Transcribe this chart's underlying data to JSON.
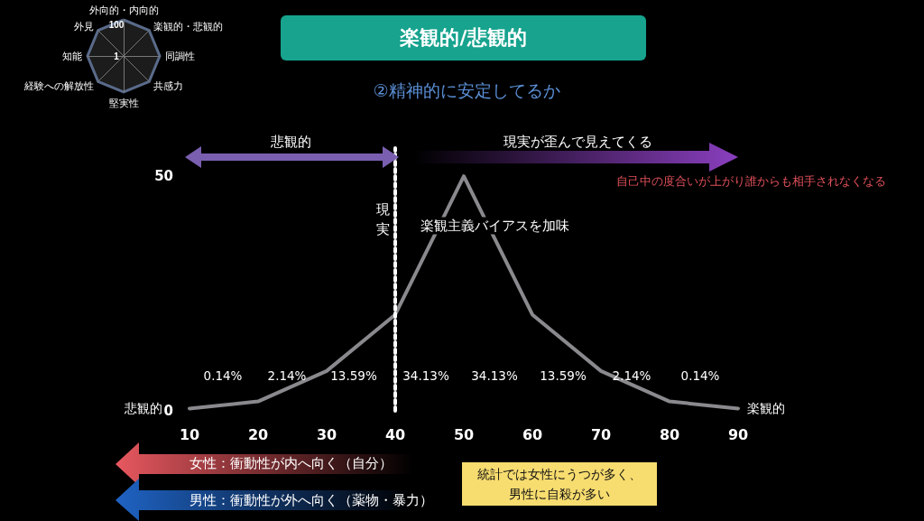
{
  "chart_data": [
    {
      "type": "line",
      "title": "楽観的/悲観的",
      "subtitle": "②精神的に安定してるか",
      "x": [
        10,
        20,
        30,
        40,
        50,
        60,
        70,
        80,
        90
      ],
      "series": [
        {
          "color": "#8a8a8e",
          "values": [
            0.5,
            2,
            8.5,
            20.5,
            50,
            20.5,
            8.5,
            2,
            0.5
          ]
        }
      ],
      "xlim": [
        10,
        90
      ],
      "xticks": [
        10,
        20,
        30,
        40,
        50,
        60,
        70,
        80,
        90
      ],
      "ylim": [
        0,
        56
      ],
      "yticks": [
        0,
        50
      ],
      "grid": false,
      "marker": "none",
      "line_style": "solid",
      "ref_lines": [
        {
          "axis": "x",
          "value": 40,
          "label": "現実",
          "color": "#ffffff",
          "line_style": "dotted"
        }
      ],
      "annotations": [
        {
          "text": "悲観的",
          "x": 10,
          "y": 0.5
        },
        {
          "text": "楽観的",
          "x": 90,
          "y": 0.5
        },
        "0.14%",
        "2.14%",
        "13.59%",
        "34.13%",
        "34.13%",
        "13.59%",
        "2.14%",
        "0.14%",
        "楽観主義バイアスを加味",
        "悲観的",
        "現実が歪んで見えてくる",
        "自己中の度合いが上がり誰からも相手されなくなる",
        "女性：衝動性が内へ向く（自分）",
        "男性：衝動性が外へ向く（薬物・暴力）",
        "統計では女性にうつが多く、男性に自殺が多い"
      ]
    },
    {
      "type": "radar",
      "categories": [
        "外向的・内向的",
        "楽観的・悲観的",
        "同調性",
        "共感力",
        "堅実性",
        "経験への解放性",
        "知能",
        "外見"
      ],
      "ylim": [
        1,
        100
      ],
      "yticks": [
        1,
        100
      ]
    }
  ]
}
